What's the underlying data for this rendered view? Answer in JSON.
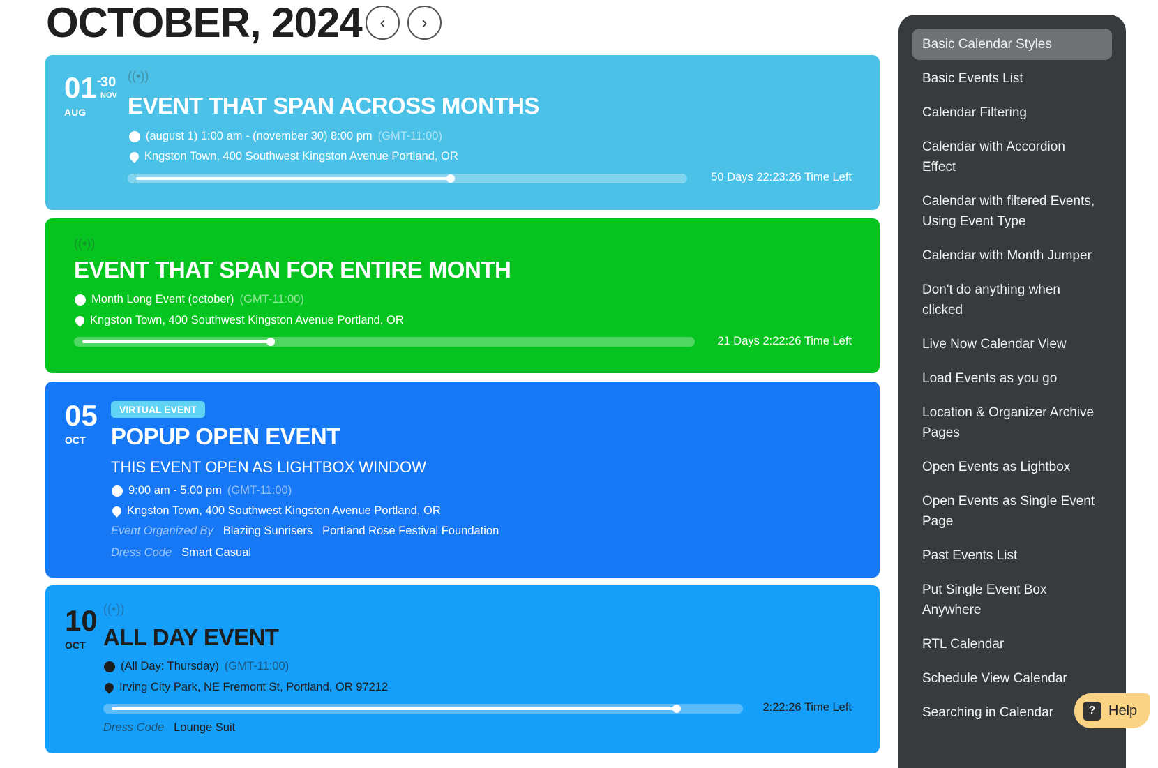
{
  "header": {
    "title": "OCTOBER, 2024",
    "prev_icon": "chevron-left-icon",
    "next_icon": "chevron-right-icon"
  },
  "events": [
    {
      "day": "01",
      "month": "AUG",
      "end_day": "30",
      "end_month": "NOV",
      "title": "EVENT THAT SPAN ACROSS MONTHS",
      "time": "(august 1) 1:00 am - (november 30) 8:00 pm",
      "gmt": "(GMT-11:00)",
      "location": "Kngston Town, 400 Southwest Kingston Avenue Portland, OR",
      "progress_percent": 57,
      "time_left": "50 Days 22:23:26 Time Left",
      "color": "#4cc1e7",
      "live_icon": "live-broadcast-icon"
    },
    {
      "title": "EVENT THAT SPAN FOR ENTIRE MONTH",
      "time": "Month Long Event (october)",
      "gmt": "(GMT-11:00)",
      "location": "Kngston Town, 400 Southwest Kingston Avenue Portland, OR",
      "progress_percent": 31,
      "time_left": "21 Days 2:22:26 Time Left",
      "color": "#06c420",
      "live_icon": "live-broadcast-icon"
    },
    {
      "day": "05",
      "month": "OCT",
      "badge": "VIRTUAL EVENT",
      "title": "POPUP OPEN EVENT",
      "subtitle": "THIS EVENT OPEN AS LIGHTBOX WINDOW",
      "time": "9:00 am - 5:00 pm",
      "gmt": "(GMT-11:00)",
      "location": "Kngston Town, 400 Southwest Kingston Avenue Portland, OR",
      "organized_label": "Event Organized By",
      "organizers": [
        "Blazing Sunrisers",
        "Portland Rose Festival Foundation"
      ],
      "dress_label": "Dress Code",
      "dress": "Smart Casual",
      "color": "#1678f5"
    },
    {
      "day": "10",
      "month": "OCT",
      "title": "ALL DAY EVENT",
      "time": "(All Day: Thursday)",
      "gmt": "(GMT-11:00)",
      "location": "Irving City Park, NE Fremont St, Portland, OR 97212",
      "progress_percent": 89,
      "time_left": "2:22:26 Time Left",
      "dress_label": "Dress Code",
      "dress": "Lounge Suit",
      "color": "#169ff9",
      "live_icon": "live-broadcast-icon"
    }
  ],
  "sidebar": {
    "active_index": 0,
    "items": [
      "Basic Calendar Styles",
      "Basic Events List",
      "Calendar Filtering",
      "Calendar with Accordion Effect",
      "Calendar with filtered Events, Using Event Type",
      "Calendar with Month Jumper",
      "Don't do anything when clicked",
      "Live Now Calendar View",
      "Load Events as you go",
      "Location & Organizer Archive Pages",
      "Open Events as Lightbox",
      "Open Events as Single Event Page",
      "Past Events List",
      "Put Single Event Box Anywhere",
      "RTL Calendar",
      "Schedule View Calendar",
      "Searching in Calendar"
    ]
  },
  "help": {
    "label": "Help",
    "icon": "question-icon"
  }
}
